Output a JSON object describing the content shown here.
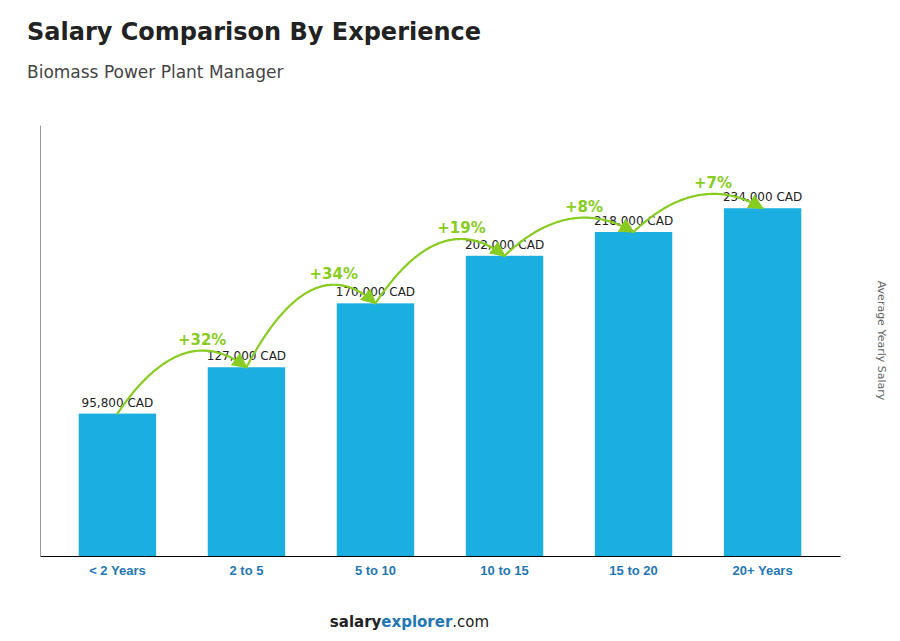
{
  "chart_data": {
    "type": "bar",
    "title": "Salary Comparison By Experience",
    "subtitle": "Biomass Power Plant Manager",
    "y_label": "Average Yearly Salary",
    "categories": [
      "< 2 Years",
      "2 to 5",
      "5 to 10",
      "10 to 15",
      "15 to 20",
      "20+ Years"
    ],
    "values": [
      95800,
      127000,
      170000,
      202000,
      218000,
      234000
    ],
    "value_labels": [
      "95,800 CAD",
      "127,000 CAD",
      "170,000 CAD",
      "202,000 CAD",
      "218,000 CAD",
      "234,000 CAD"
    ],
    "data_labels": true,
    "annotations": [
      "+32%",
      "+34%",
      "+19%",
      "+8%",
      "+7%"
    ],
    "footer": [
      "salary",
      "explorer",
      ".com"
    ],
    "color": "#1BAEE0",
    "ylim": [
      0,
      290000
    ],
    "tick_labels": "x",
    "grid": false
  }
}
